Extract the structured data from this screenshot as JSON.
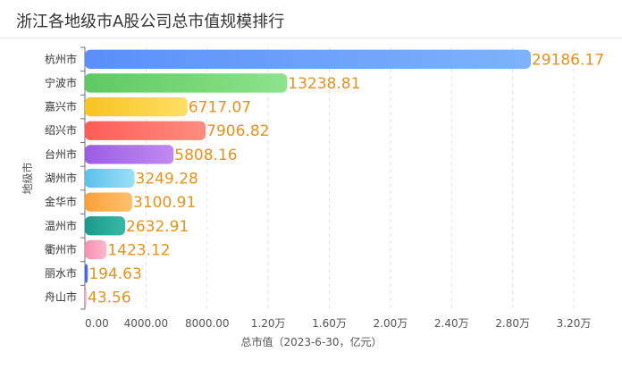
{
  "chart_data": {
    "type": "bar",
    "orientation": "horizontal",
    "title": "浙江各地级市A股公司总市值规模排行",
    "ylabel": "地级市",
    "xlabel": "总市值（2023-6-30，亿元）",
    "xlim": [
      0,
      32000
    ],
    "x_ticks": [
      0,
      4000,
      8000,
      12000,
      16000,
      20000,
      24000,
      28000,
      32000
    ],
    "x_tick_labels": [
      "0.00",
      "4000.00",
      "8000.00",
      "1.20万",
      "1.60万",
      "2.00万",
      "2.40万",
      "2.80万",
      "3.20万"
    ],
    "grid": true,
    "categories": [
      "杭州市",
      "宁波市",
      "嘉兴市",
      "绍兴市",
      "台州市",
      "湖州市",
      "金华市",
      "温州市",
      "衢州市",
      "丽水市",
      "舟山市"
    ],
    "values": [
      29186.17,
      13238.81,
      6717.07,
      7906.82,
      5808.16,
      3249.28,
      3100.91,
      2632.91,
      1423.12,
      194.63,
      43.56
    ],
    "value_labels": [
      "29186.17",
      "13238.81",
      "6717.07",
      "7906.82",
      "5808.16",
      "3249.28",
      "3100.91",
      "2632.91",
      "1423.12",
      "194.63",
      "43.56"
    ],
    "bar_colors": [
      [
        "#5b8ff9",
        "#7fb2fb"
      ],
      [
        "#5ec962",
        "#8ee38c"
      ],
      [
        "#f7c31f",
        "#ffdf66"
      ],
      [
        "#ff5c57",
        "#ff8d80"
      ],
      [
        "#9b5de5",
        "#c08af0"
      ],
      [
        "#5bc0eb",
        "#9be0f7"
      ],
      [
        "#f9a13a",
        "#ffc170"
      ],
      [
        "#1a9a8c",
        "#3ab8a6"
      ],
      [
        "#f78fb3",
        "#ffb8d0"
      ],
      [
        "#3b5bdb",
        "#5c7cfa"
      ],
      [
        "#f4a3c4",
        "#ffc8dd"
      ]
    ],
    "value_label_color": "#e6931c"
  }
}
